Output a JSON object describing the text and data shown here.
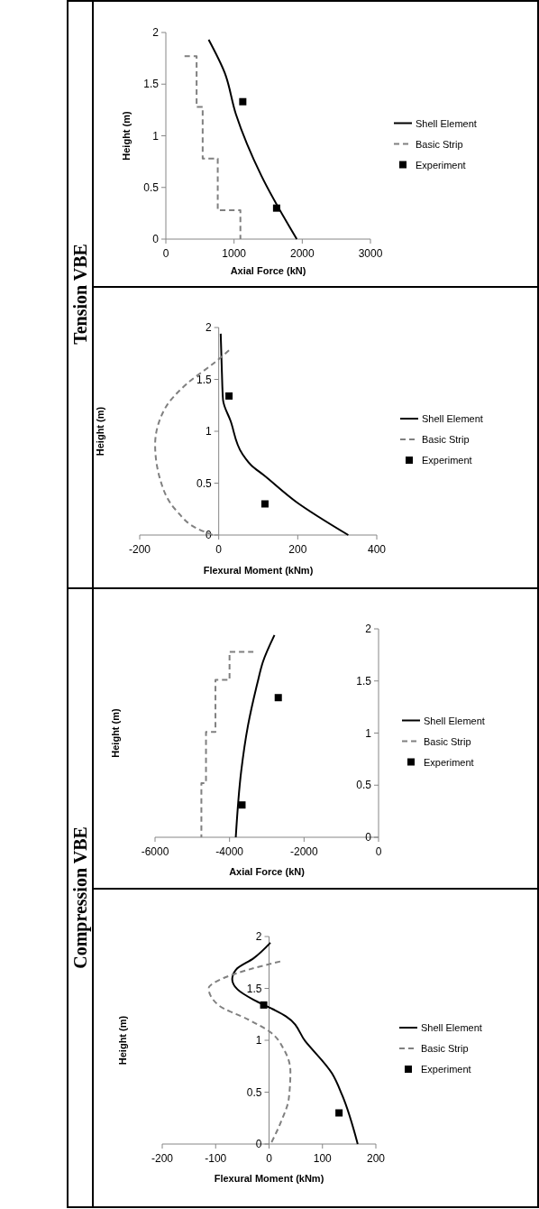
{
  "chart_data": [
    {
      "type": "line",
      "annotations": [
        "Tension VBE"
      ],
      "xlabel": "Axial Force (kN)",
      "ylabel": "Height (m)",
      "xlim": [
        0,
        3000
      ],
      "xticks": [
        0,
        1000,
        2000,
        3000
      ],
      "ylim": [
        0,
        2
      ],
      "yticks": [
        0,
        0.5,
        1,
        1.5,
        2
      ],
      "grid": false,
      "legend": "right",
      "series": [
        {
          "name": "Shell Element",
          "color": "#000000",
          "line_style": "solid",
          "marker": "none",
          "x": [
            628,
            863,
            1027,
            1403,
            1920
          ],
          "values": [
            1.93,
            1.61,
            1.21,
            0.61,
            0
          ]
        },
        {
          "name": "Basic Strip",
          "color": "#808080",
          "line_style": "dashed",
          "marker": "none",
          "x": [
            274,
            451,
            451,
            540,
            540,
            761,
            761,
            1093,
            1093
          ],
          "values": [
            1.77,
            1.77,
            1.28,
            1.28,
            0.78,
            0.78,
            0.28,
            0.28,
            0
          ]
        },
        {
          "name": "Experiment",
          "type": "scatter",
          "color": "#000000",
          "marker": "square",
          "x": [
            1128,
            1624
          ],
          "values": [
            1.33,
            0.3
          ]
        }
      ]
    },
    {
      "type": "line",
      "xlabel": "Flexural Moment (kNm)",
      "ylabel": "Height (m)",
      "xlim": [
        -200,
        400
      ],
      "xticks": [
        -200,
        0,
        200,
        400
      ],
      "ylim": [
        0,
        2
      ],
      "yticks": [
        0,
        0.5,
        1,
        1.5,
        2
      ],
      "grid": false,
      "legend": "right",
      "series": [
        {
          "name": "Shell Element",
          "color": "#000000",
          "line_style": "solid",
          "marker": "none",
          "x": [
            5,
            8,
            11,
            30,
            60,
            83,
            113,
            196,
            328
          ],
          "values": [
            1.94,
            1.57,
            1.3,
            1.1,
            0.78,
            0.67,
            0.58,
            0.32,
            0
          ]
        },
        {
          "name": "Basic Strip",
          "color": "#808080",
          "line_style": "dashed",
          "marker": "none",
          "x": [
            26,
            -8,
            -83,
            -136,
            -161,
            -147,
            -106,
            -53,
            -15
          ],
          "values": [
            1.78,
            1.67,
            1.45,
            1.22,
            0.87,
            0.52,
            0.23,
            0.06,
            0
          ]
        },
        {
          "name": "Experiment",
          "type": "scatter",
          "color": "#000000",
          "marker": "square",
          "x": [
            26,
            117
          ],
          "values": [
            1.34,
            0.3
          ]
        }
      ]
    },
    {
      "type": "line",
      "annotations": [
        "Compression VBE"
      ],
      "xlabel": "Axial Force (kN)",
      "ylabel": "Height (m)",
      "xlim": [
        -6000,
        0
      ],
      "xticks": [
        -6000,
        -4000,
        -2000,
        0
      ],
      "ylim": [
        0,
        2
      ],
      "yticks": [
        0,
        0.5,
        1,
        1.5,
        2
      ],
      "grid": false,
      "legend": "right",
      "series": [
        {
          "name": "Shell Element",
          "color": "#000000",
          "line_style": "solid",
          "marker": "none",
          "x": [
            -2794,
            -3107,
            -3252,
            -3506,
            -3688,
            -3833
          ],
          "values": [
            1.94,
            1.68,
            1.48,
            1.07,
            0.63,
            0
          ]
        },
        {
          "name": "Basic Strip",
          "color": "#808080",
          "line_style": "dashed",
          "marker": "none",
          "x": [
            -3360,
            -4000,
            -4000,
            -4378,
            -4378,
            -4632,
            -4632,
            -4756,
            -4756
          ],
          "values": [
            1.78,
            1.78,
            1.51,
            1.51,
            1.01,
            1.01,
            0.52,
            0.52,
            0
          ]
        },
        {
          "name": "Experiment",
          "type": "scatter",
          "color": "#000000",
          "marker": "square",
          "x": [
            -2692,
            -3666
          ],
          "values": [
            1.34,
            0.31
          ]
        }
      ]
    },
    {
      "type": "line",
      "xlabel": "Flexural Moment (kNm)",
      "ylabel": "Height (m)",
      "xlim": [
        -200,
        200
      ],
      "xticks": [
        -200,
        -100,
        0,
        100,
        200
      ],
      "ylim": [
        0,
        2
      ],
      "yticks": [
        0,
        0.5,
        1,
        1.5,
        2
      ],
      "grid": false,
      "legend": "right",
      "series": [
        {
          "name": "Shell Element",
          "color": "#000000",
          "line_style": "solid",
          "marker": "none",
          "x": [
            2.5,
            -29,
            -62,
            -69,
            -59,
            -29,
            7,
            32,
            68,
            118,
            137,
            166
          ],
          "values": [
            1.94,
            1.79,
            1.68,
            1.59,
            1.49,
            1.39,
            1.3,
            1.23,
            0.99,
            0.68,
            0.47,
            0
          ]
        },
        {
          "name": "Basic Strip",
          "color": "#808080",
          "line_style": "dashed",
          "marker": "none",
          "x": [
            21,
            -39,
            -85,
            -113,
            -95,
            -39,
            2,
            28,
            40,
            37,
            22,
            3
          ],
          "values": [
            1.76,
            1.68,
            1.6,
            1.5,
            1.34,
            1.2,
            1.08,
            0.91,
            0.7,
            0.44,
            0.21,
            0
          ]
        },
        {
          "name": "Experiment",
          "type": "scatter",
          "color": "#000000",
          "marker": "square",
          "x": [
            -10,
            131
          ],
          "values": [
            1.34,
            0.3
          ]
        }
      ]
    }
  ]
}
